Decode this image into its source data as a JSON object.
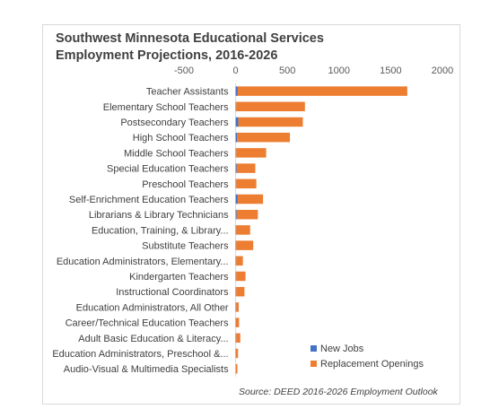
{
  "chart_data": {
    "type": "bar",
    "orientation": "horizontal",
    "stacked": true,
    "title_line1": "Southwest Minnesota Educational Services",
    "title_line2": "Employment Projections, 2016-2026",
    "x_ticks": [
      "-500",
      "0",
      "500",
      "1000",
      "1500",
      "2000"
    ],
    "xlim": [
      -500,
      2000
    ],
    "grid": false,
    "categories": [
      "Teacher Assistants",
      "Elementary School Teachers",
      "Postsecondary Teachers",
      "High School Teachers",
      "Middle School Teachers",
      "Special Education Teachers",
      "Preschool Teachers",
      "Self-Enrichment Education Teachers",
      "Librarians & Library Technicians",
      "Education, Training, & Library...",
      "Substitute Teachers",
      "Education Administrators, Elementary...",
      "Kindergarten Teachers",
      "Instructional Coordinators",
      "Education Administrators, All Other",
      "Career/Technical Education Teachers",
      "Adult Basic Education & Literacy...",
      "Education Administrators, Preschool &...",
      "Audio-Visual & Multimedia Specialists"
    ],
    "series": [
      {
        "name": "New Jobs",
        "color": "#4472c4",
        "values": [
          20,
          5,
          25,
          15,
          5,
          10,
          5,
          20,
          10,
          5,
          5,
          5,
          5,
          5,
          5,
          3,
          5,
          3,
          2
        ]
      },
      {
        "name": "Replacement Openings",
        "color": "#ed7d31",
        "values": [
          1640,
          665,
          625,
          510,
          290,
          180,
          195,
          245,
          205,
          135,
          165,
          65,
          90,
          80,
          25,
          30,
          40,
          20,
          15
        ]
      }
    ],
    "legend_position": "bottom-right",
    "source": "Source:  DEED 2016-2026 Employment Outlook"
  }
}
